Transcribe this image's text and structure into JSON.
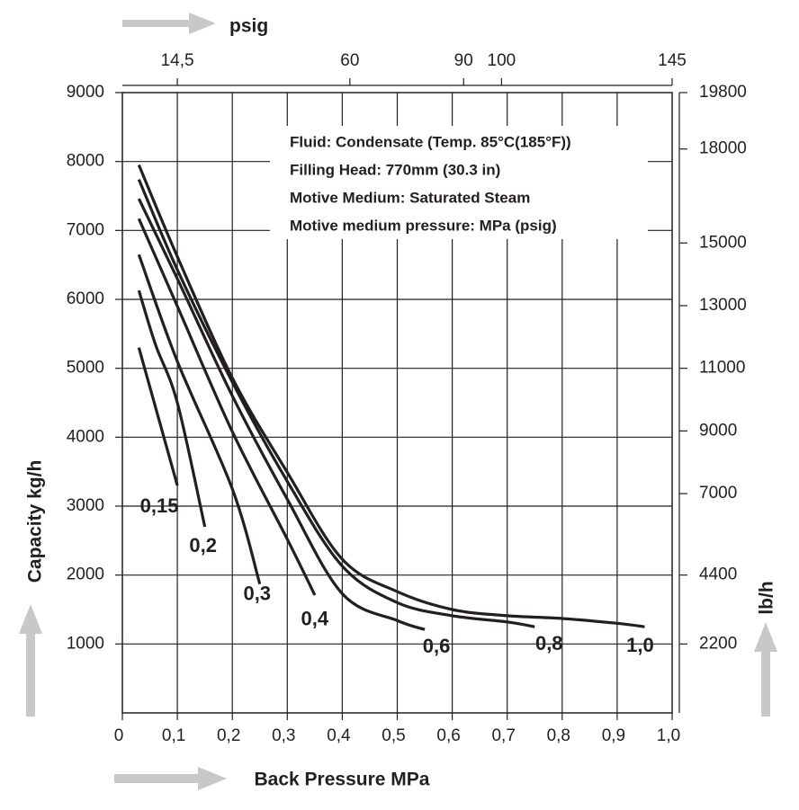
{
  "chart_data": {
    "type": "line",
    "x_label": "Back Pressure MPa",
    "y_label": "Capacity kg/h",
    "x2_label": "psig",
    "y2_label": "lb/h",
    "annotations": [
      "Fluid: Condensate (Temp. 85°C(185°F))",
      "Filling Head: 770mm (30.3 in)",
      "Motive Medium: Saturated Steam",
      "Motive medium pressure: MPa (psig)"
    ],
    "xlim": [
      0,
      1.0
    ],
    "xticks": [
      0,
      {
        "value": 0.1,
        "label": "0,1"
      },
      {
        "value": 0.2,
        "label": "0,2"
      },
      {
        "value": 0.3,
        "label": "0,3"
      },
      {
        "value": 0.4,
        "label": "0,4"
      },
      {
        "value": 0.5,
        "label": "0,5"
      },
      {
        "value": 0.6,
        "label": "0,6"
      },
      {
        "value": 0.7,
        "label": "0,7"
      },
      {
        "value": 0.8,
        "label": "0,8"
      },
      {
        "value": 0.9,
        "label": "0,9"
      },
      {
        "value": 1.0,
        "label": "1,0"
      }
    ],
    "ylim": [
      0,
      9000
    ],
    "yticks": [
      1000,
      2000,
      3000,
      4000,
      5000,
      6000,
      7000,
      8000,
      9000
    ],
    "x2lim": [
      0,
      145
    ],
    "x2ticks": [
      {
        "value": 14.5,
        "label": "14,5"
      },
      60,
      90,
      100,
      145
    ],
    "y2lim": [
      0,
      19800
    ],
    "y2ticks": [
      2200,
      4400,
      7000,
      9000,
      11000,
      13000,
      15000,
      18000,
      19800
    ],
    "grid": true,
    "series": [
      {
        "name": "0,15",
        "color": "#231f20",
        "x": [
          0.03,
          0.1
        ],
        "values": [
          5300,
          3300
        ]
      },
      {
        "name": "0,2",
        "color": "#231f20",
        "x": [
          0.03,
          0.06,
          0.1,
          0.15
        ],
        "values": [
          6130,
          5350,
          4500,
          2700
        ]
      },
      {
        "name": "0,3",
        "color": "#231f20",
        "x": [
          0.03,
          0.1,
          0.2,
          0.25
        ],
        "values": [
          6650,
          5100,
          3250,
          1870
        ]
      },
      {
        "name": "0,4",
        "color": "#231f20",
        "x": [
          0.03,
          0.1,
          0.2,
          0.3,
          0.35
        ],
        "values": [
          7170,
          5900,
          4080,
          2520,
          1710
        ]
      },
      {
        "name": "0,6",
        "color": "#231f20",
        "x": [
          0.03,
          0.1,
          0.2,
          0.3,
          0.4,
          0.5,
          0.55
        ],
        "values": [
          7460,
          6300,
          4600,
          3100,
          1730,
          1340,
          1210
        ]
      },
      {
        "name": "0,8",
        "color": "#231f20",
        "x": [
          0.03,
          0.1,
          0.2,
          0.3,
          0.4,
          0.5,
          0.6,
          0.7,
          0.75
        ],
        "values": [
          7740,
          6430,
          4800,
          3360,
          2130,
          1600,
          1410,
          1320,
          1250
        ]
      },
      {
        "name": "1,0",
        "color": "#231f20",
        "x": [
          0.03,
          0.1,
          0.2,
          0.3,
          0.4,
          0.5,
          0.6,
          0.7,
          0.8,
          0.9,
          0.95
        ],
        "values": [
          7950,
          6620,
          4860,
          3490,
          2230,
          1760,
          1500,
          1410,
          1370,
          1300,
          1250
        ]
      }
    ]
  }
}
